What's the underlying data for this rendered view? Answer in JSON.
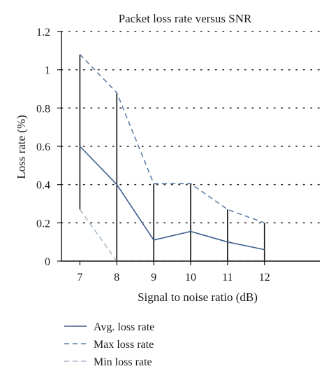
{
  "chart_data": {
    "type": "line",
    "title": "Packet loss rate versus SNR",
    "xlabel": "Signal to noise ratio (dB)",
    "ylabel": "Loss rate (%)",
    "x": [
      7,
      8,
      9,
      10,
      11,
      12
    ],
    "xlim": [
      6.5,
      13.5
    ],
    "ylim": [
      0,
      1.2
    ],
    "yticks": [
      0,
      0.2,
      0.4,
      0.6,
      0.8,
      1,
      1.2
    ],
    "ytick_labels": [
      "0",
      "0.2",
      "0.4",
      "0.6",
      "0.8",
      "1",
      "1.2"
    ],
    "xtick_labels": [
      "7",
      "8",
      "9",
      "10",
      "11",
      "12"
    ],
    "grid": "horizontal-dotted",
    "legend_position": "bottom-left",
    "series": [
      {
        "name": "Avg. loss rate",
        "values": [
          0.6,
          0.4,
          0.11,
          0.155,
          0.1,
          0.06
        ],
        "style": "solid",
        "color": "#3f5f8f"
      },
      {
        "name": "Max loss rate",
        "values": [
          1.08,
          0.88,
          0.405,
          0.405,
          0.27,
          0.2
        ],
        "style": "dashed",
        "color": "#5f7fa8"
      },
      {
        "name": "Min loss rate",
        "values": [
          0.27,
          0,
          0,
          0,
          0,
          0
        ],
        "style": "dashed",
        "color": "#a8b8c8"
      }
    ],
    "error_bars": {
      "color": "#111111"
    }
  }
}
